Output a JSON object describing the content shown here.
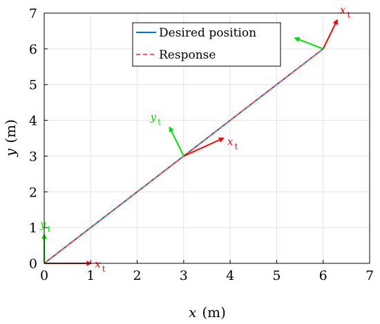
{
  "chart_data": {
    "type": "line",
    "xlabel": {
      "symbol": "x",
      "unit": "(m)"
    },
    "ylabel": {
      "symbol": "y",
      "unit": "(m)"
    },
    "xlim": [
      0,
      7
    ],
    "ylim": [
      0,
      7
    ],
    "xticks": [
      "0",
      "1",
      "2",
      "3",
      "4",
      "5",
      "6",
      "7"
    ],
    "yticks": [
      "0",
      "1",
      "2",
      "3",
      "4",
      "5",
      "6",
      "7"
    ],
    "grid": true,
    "legend_position": "top-center",
    "series": [
      {
        "name": "Desired position",
        "color": "#0072BD",
        "style": "solid",
        "x": [
          0,
          3,
          6
        ],
        "y": [
          0,
          3,
          6
        ]
      },
      {
        "name": "Response",
        "color": "#FF5555",
        "style": "dashed",
        "x": [
          0,
          3,
          6
        ],
        "y": [
          0,
          3,
          6
        ]
      }
    ],
    "frames": [
      {
        "origin": [
          0,
          0
        ],
        "x_axis_label": "x",
        "y_axis_label": "y",
        "subscript": "t",
        "x_tip": [
          1.0,
          0.0
        ],
        "y_tip": [
          0.0,
          0.8
        ]
      },
      {
        "origin": [
          3,
          3
        ],
        "x_axis_label": "x",
        "y_axis_label": "y",
        "subscript": "t",
        "x_tip": [
          3.85,
          3.5
        ],
        "y_tip": [
          2.7,
          3.8
        ]
      },
      {
        "origin": [
          6,
          6
        ],
        "x_axis_label": "x",
        "y_axis_label": "y",
        "subscript": "t",
        "x_tip": [
          6.3,
          6.8
        ],
        "y_tip": [
          5.4,
          6.3
        ]
      }
    ],
    "frame_colors": {
      "x": "#FF0000",
      "y": "#00DD00"
    }
  }
}
